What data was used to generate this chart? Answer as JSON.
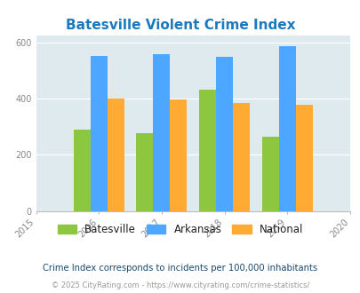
{
  "title": "Batesville Violent Crime Index",
  "years": [
    2016,
    2017,
    2018,
    2019
  ],
  "batesville": [
    290,
    275,
    430,
    265
  ],
  "arkansas": [
    552,
    558,
    547,
    585
  ],
  "national": [
    400,
    397,
    385,
    379
  ],
  "colors": {
    "batesville": "#8dc63f",
    "arkansas": "#4da6ff",
    "national": "#ffaa33"
  },
  "xlim": [
    2015,
    2020
  ],
  "ylim": [
    0,
    625
  ],
  "yticks": [
    0,
    200,
    400,
    600
  ],
  "xticks": [
    2015,
    2016,
    2017,
    2018,
    2019,
    2020
  ],
  "title_color": "#1a7abf",
  "bg_color": "#deeaed",
  "subtitle": "Crime Index corresponds to incidents per 100,000 inhabitants",
  "footer": "© 2025 CityRating.com - https://www.cityrating.com/crime-statistics/",
  "bar_width": 0.27,
  "legend_label_color": "#222222",
  "subtitle_color": "#1a4a6e",
  "footer_color": "#999999",
  "footer_link_color": "#3399cc"
}
